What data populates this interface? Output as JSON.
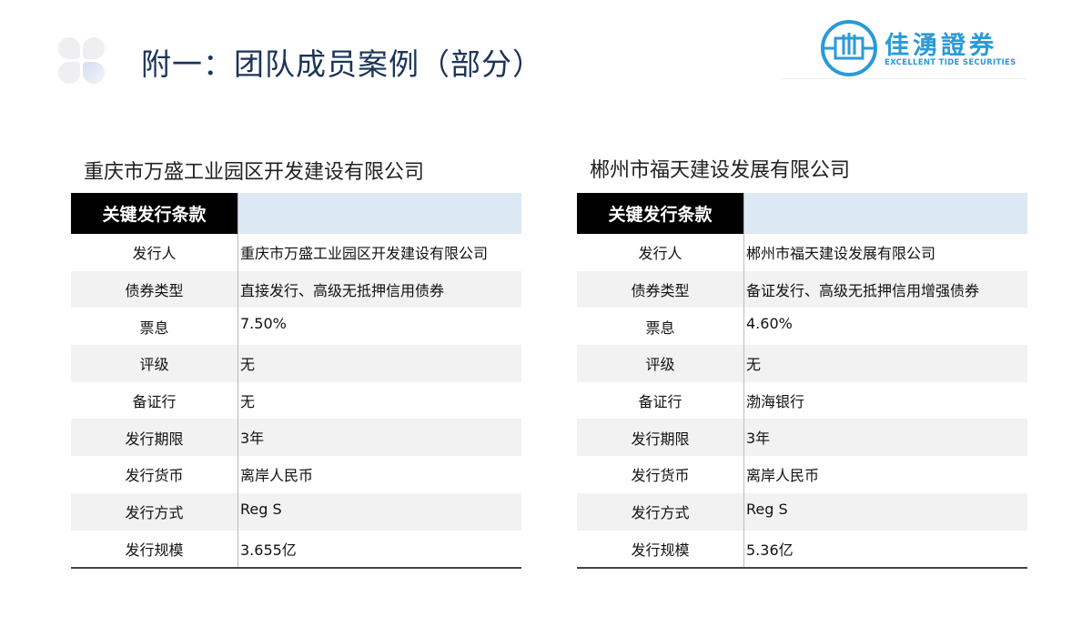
{
  "header": {
    "title": "附一：团队成员案例（部分）"
  },
  "logo": {
    "cn": "佳湧證券",
    "en": "EXCELLENT TIDE SECURITIES",
    "color": "#2a9ad8"
  },
  "cases": [
    {
      "company": "重庆市万盛工业园区开发建设有限公司",
      "header": "关键发行条款",
      "rows": [
        {
          "label": "发行人",
          "value": "重庆市万盛工业园区开发建设有限公司"
        },
        {
          "label": "债券类型",
          "value": "直接发行、高级无抵押信用债券"
        },
        {
          "label": "票息",
          "value": "7.50%"
        },
        {
          "label": "评级",
          "value": "无"
        },
        {
          "label": "备证行",
          "value": "无"
        },
        {
          "label": "发行期限",
          "value": "3年"
        },
        {
          "label": "发行货币",
          "value": "离岸人民币"
        },
        {
          "label": "发行方式",
          "value": "Reg S"
        },
        {
          "label": "发行规模",
          "value": "3.655亿"
        }
      ]
    },
    {
      "company": "郴州市福天建设发展有限公司",
      "header": "关键发行条款",
      "rows": [
        {
          "label": "发行人",
          "value": "郴州市福天建设发展有限公司"
        },
        {
          "label": "债券类型",
          "value": "备证发行、高级无抵押信用增强债券"
        },
        {
          "label": "票息",
          "value": "4.60%"
        },
        {
          "label": "评级",
          "value": "无"
        },
        {
          "label": "备证行",
          "value": "渤海银行"
        },
        {
          "label": "发行期限",
          "value": "3年"
        },
        {
          "label": "发行货币",
          "value": "离岸人民币"
        },
        {
          "label": "发行方式",
          "value": "Reg S"
        },
        {
          "label": "发行规模",
          "value": "5.36亿"
        }
      ]
    }
  ]
}
